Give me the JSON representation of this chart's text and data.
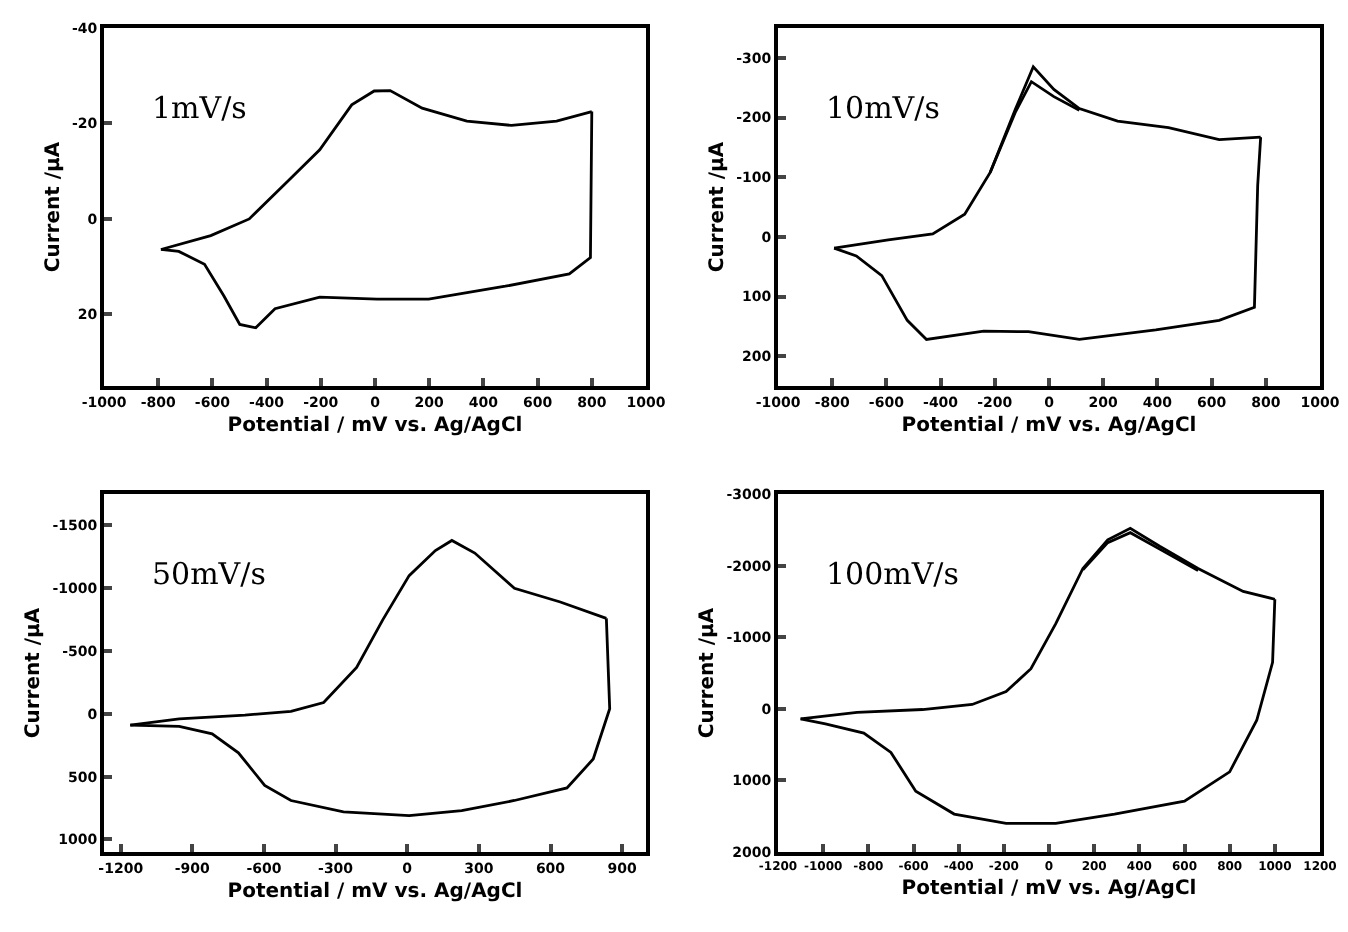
{
  "chart_data": [
    {
      "type": "line",
      "xlabel": "Potential / mV vs. Ag/AgCl",
      "ylabel": "Current /µA",
      "annotations": [
        "1mV/s"
      ],
      "xlim": [
        -1000,
        1000
      ],
      "xticks": [
        -1000,
        -800,
        -600,
        -400,
        -200,
        0,
        200,
        400,
        600,
        800,
        1000
      ],
      "ylim": [
        35,
        -40
      ],
      "yticks": [
        -40,
        -20,
        0,
        20
      ],
      "series": [
        {
          "color": "#000000",
          "x": [
            -790,
            -606,
            -464,
            -322,
            -204,
            -86,
            -3,
            56,
            174,
            339,
            504,
            670,
            800
          ],
          "values": [
            6.4,
            3.5,
            0,
            -7.9,
            -14.5,
            -23.9,
            -26.8,
            -26.9,
            -23.2,
            -20.5,
            -19.6,
            -20.5,
            -22.5
          ]
        },
        {
          "color": "#000000",
          "x": [
            800,
            795,
            717,
            481,
            198,
            8,
            -204,
            -369,
            -440,
            -499,
            -558,
            -629,
            -724,
            -790
          ],
          "values": [
            -22.5,
            8.1,
            11.5,
            14.1,
            16.8,
            16.8,
            16.4,
            18.8,
            22.8,
            22.1,
            16.1,
            9.5,
            6.8,
            6.4
          ]
        }
      ]
    },
    {
      "type": "line",
      "xlabel": "Potential / mV vs. Ag/AgCl",
      "ylabel": "Current /µA",
      "annotations": [
        "10mV/s"
      ],
      "xlim": [
        -1000,
        1000
      ],
      "xticks": [
        -1000,
        -800,
        -600,
        -400,
        -200,
        0,
        200,
        400,
        600,
        800,
        1000
      ],
      "ylim": [
        250,
        -350
      ],
      "yticks": [
        -300,
        -200,
        -100,
        0,
        100,
        200
      ],
      "series": [
        {
          "color": "#000000",
          "x": [
            -793,
            -593,
            -429,
            -311,
            -217,
            -123,
            -58,
            18,
            112,
            253,
            441,
            628,
            781
          ],
          "values": [
            19,
            5,
            -5,
            -38,
            -108,
            -215,
            -285,
            -247,
            -215,
            -194,
            -183,
            -163,
            -167
          ]
        },
        {
          "color": "#000000",
          "x": [
            781,
            770,
            758,
            628,
            394,
            112,
            -76,
            -241,
            -452,
            -523,
            -617,
            -711,
            -793
          ],
          "values": [
            -167,
            -86,
            118,
            140,
            156,
            172,
            159,
            158,
            172,
            140,
            65,
            32,
            19
          ]
        },
        {
          "color": "#000000",
          "x": [
            -217,
            -123,
            -65,
            18,
            112
          ],
          "values": [
            -108,
            -210,
            -260,
            -235,
            -212
          ]
        }
      ]
    },
    {
      "type": "line",
      "xlabel": "Potential / mV vs. Ag/AgCl",
      "ylabel": "Current /µA",
      "annotations": [
        "50mV/s"
      ],
      "xlim": [
        -1270,
        1000
      ],
      "xticks": [
        -1200,
        -900,
        -600,
        -300,
        0,
        300,
        600,
        900
      ],
      "ylim": [
        1100,
        -1750
      ],
      "yticks": [
        -1500,
        -1000,
        -500,
        0,
        500,
        1000
      ],
      "series": [
        {
          "color": "#000000",
          "x": [
            -1160,
            -955,
            -680,
            -487,
            -350,
            -212,
            -102,
            8,
            118,
            187,
            283,
            449,
            641,
            834
          ],
          "values": [
            90,
            40,
            10,
            -20,
            -90,
            -370,
            -750,
            -1100,
            -1300,
            -1380,
            -1280,
            -1000,
            -890,
            -760
          ]
        },
        {
          "color": "#000000",
          "x": [
            834,
            848,
            779,
            669,
            449,
            228,
            8,
            -267,
            -487,
            -597,
            -707,
            -817,
            -955,
            -1160
          ],
          "values": [
            -760,
            -40,
            360,
            590,
            690,
            770,
            810,
            780,
            690,
            570,
            310,
            160,
            100,
            90
          ]
        }
      ]
    },
    {
      "type": "line",
      "xlabel": "Potential / mV vs. Ag/AgCl",
      "ylabel": "Current /µA",
      "annotations": [
        "100mV/s"
      ],
      "xlim": [
        -1200,
        1200
      ],
      "xticks": [
        -1200,
        -1000,
        -800,
        -600,
        -400,
        -200,
        0,
        200,
        400,
        600,
        800,
        1000,
        1200
      ],
      "ylim": [
        2000,
        -3000
      ],
      "yticks": [
        -3000,
        -2000,
        -1000,
        0,
        1000,
        2000
      ],
      "series": [
        {
          "color": "#000000",
          "x": [
            -1100,
            -850,
            -560,
            -340,
            -190,
            -80,
            30,
            150,
            260,
            360,
            490,
            660,
            860,
            1000
          ],
          "values": [
            140,
            50,
            10,
            -60,
            -240,
            -560,
            -1190,
            -1960,
            -2360,
            -2520,
            -2270,
            -1960,
            -1640,
            -1530
          ]
        },
        {
          "color": "#000000",
          "x": [
            1000,
            990,
            920,
            800,
            600,
            290,
            30,
            -190,
            -420,
            -590,
            -700,
            -820,
            -990,
            -1100
          ],
          "values": [
            -1530,
            -650,
            160,
            880,
            1290,
            1470,
            1600,
            1600,
            1470,
            1150,
            610,
            340,
            210,
            140
          ]
        },
        {
          "color": "#000000",
          "x": [
            150,
            260,
            360,
            490,
            660
          ],
          "values": [
            -1940,
            -2320,
            -2460,
            -2230,
            -1930
          ]
        }
      ]
    }
  ]
}
